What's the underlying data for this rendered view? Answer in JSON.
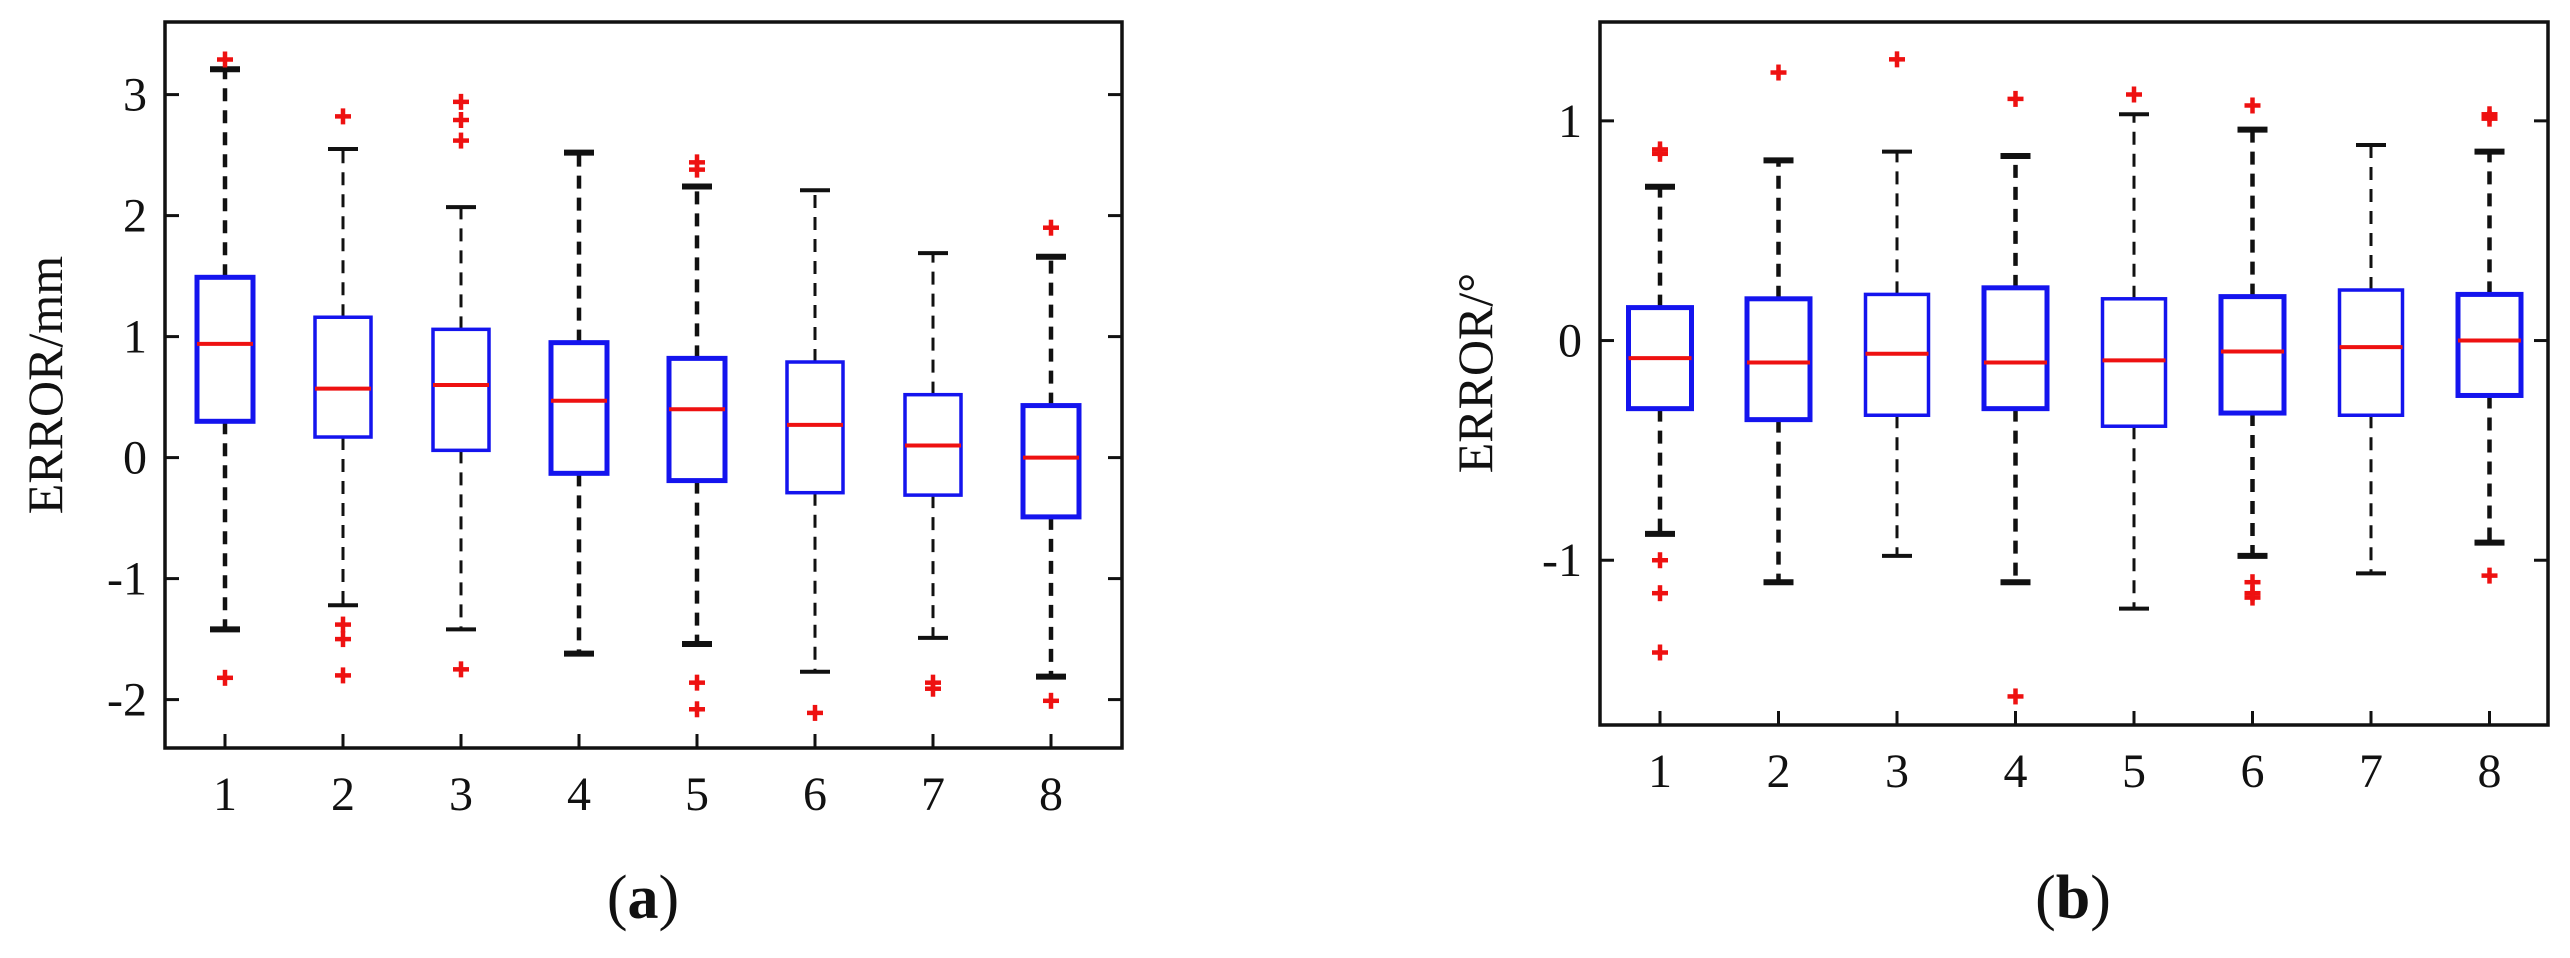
{
  "colors": {
    "box": "#1414ee",
    "median": "#ee1111",
    "whisker": "#111111",
    "outlier": "#ee1111",
    "axis": "#111111"
  },
  "chart_data": [
    {
      "type": "boxplot",
      "panel_label": "a",
      "ylabel": "ERROR/mm",
      "xlabel": "",
      "ylim": [
        -2.4,
        3.6
      ],
      "yticks": [
        -2,
        -1,
        0,
        1,
        2,
        3
      ],
      "ytick_labels": [
        "-2",
        "-1",
        "0",
        "1",
        "2",
        "3"
      ],
      "categories": [
        "1",
        "2",
        "3",
        "4",
        "5",
        "6",
        "7",
        "8"
      ],
      "boxes": [
        {
          "category": "1",
          "whisker_low": -1.42,
          "q1": 0.3,
          "median": 0.94,
          "q3": 1.49,
          "whisker_high": 3.21,
          "outliers": [
            3.29,
            -1.82
          ]
        },
        {
          "category": "2",
          "whisker_low": -1.22,
          "q1": 0.17,
          "median": 0.57,
          "q3": 1.16,
          "whisker_high": 2.55,
          "outliers": [
            2.82,
            -1.38,
            -1.5,
            -1.8
          ]
        },
        {
          "category": "3",
          "whisker_low": -1.42,
          "q1": 0.06,
          "median": 0.6,
          "q3": 1.06,
          "whisker_high": 2.07,
          "outliers": [
            2.94,
            2.79,
            2.62,
            -1.75
          ]
        },
        {
          "category": "4",
          "whisker_low": -1.62,
          "q1": -0.13,
          "median": 0.47,
          "q3": 0.95,
          "whisker_high": 2.52,
          "outliers": []
        },
        {
          "category": "5",
          "whisker_low": -1.54,
          "q1": -0.19,
          "median": 0.4,
          "q3": 0.82,
          "whisker_high": 2.24,
          "outliers": [
            2.44,
            2.38,
            -1.86,
            -2.08
          ]
        },
        {
          "category": "6",
          "whisker_low": -1.77,
          "q1": -0.29,
          "median": 0.27,
          "q3": 0.79,
          "whisker_high": 2.21,
          "outliers": [
            -2.11
          ]
        },
        {
          "category": "7",
          "whisker_low": -1.49,
          "q1": -0.31,
          "median": 0.1,
          "q3": 0.52,
          "whisker_high": 1.69,
          "outliers": [
            -1.86,
            -1.91
          ]
        },
        {
          "category": "8",
          "whisker_low": -1.81,
          "q1": -0.49,
          "median": 0.0,
          "q3": 0.43,
          "whisker_high": 1.66,
          "outliers": [
            1.9,
            -2.01
          ]
        }
      ]
    },
    {
      "type": "boxplot",
      "panel_label": "b",
      "ylabel": "ERROR/°",
      "xlabel": "",
      "ylim": [
        -1.75,
        1.45
      ],
      "yticks": [
        -1,
        0,
        1
      ],
      "ytick_labels": [
        "-1",
        "0",
        "1"
      ],
      "categories": [
        "1",
        "2",
        "3",
        "4",
        "5",
        "6",
        "7",
        "8"
      ],
      "boxes": [
        {
          "category": "1",
          "whisker_low": -0.88,
          "q1": -0.31,
          "median": -0.08,
          "q3": 0.15,
          "whisker_high": 0.7,
          "outliers": [
            0.87,
            0.85,
            -1.0,
            -1.15,
            -1.42
          ]
        },
        {
          "category": "2",
          "whisker_low": -1.1,
          "q1": -0.36,
          "median": -0.1,
          "q3": 0.19,
          "whisker_high": 0.82,
          "outliers": [
            1.22
          ]
        },
        {
          "category": "3",
          "whisker_low": -0.98,
          "q1": -0.34,
          "median": -0.06,
          "q3": 0.21,
          "whisker_high": 0.86,
          "outliers": [
            1.28
          ]
        },
        {
          "category": "4",
          "whisker_low": -1.1,
          "q1": -0.31,
          "median": -0.1,
          "q3": 0.24,
          "whisker_high": 0.84,
          "outliers": [
            1.1,
            -1.62
          ]
        },
        {
          "category": "5",
          "whisker_low": -1.22,
          "q1": -0.39,
          "median": -0.09,
          "q3": 0.19,
          "whisker_high": 1.03,
          "outliers": [
            1.12
          ]
        },
        {
          "category": "6",
          "whisker_low": -0.98,
          "q1": -0.33,
          "median": -0.05,
          "q3": 0.2,
          "whisker_high": 0.96,
          "outliers": [
            1.07,
            -1.1,
            -1.15,
            -1.17
          ]
        },
        {
          "category": "7",
          "whisker_low": -1.06,
          "q1": -0.34,
          "median": -0.03,
          "q3": 0.23,
          "whisker_high": 0.89,
          "outliers": []
        },
        {
          "category": "8",
          "whisker_low": -0.92,
          "q1": -0.25,
          "median": 0.0,
          "q3": 0.21,
          "whisker_high": 0.86,
          "outliers": [
            1.03,
            1.01,
            -1.07
          ]
        }
      ]
    }
  ]
}
